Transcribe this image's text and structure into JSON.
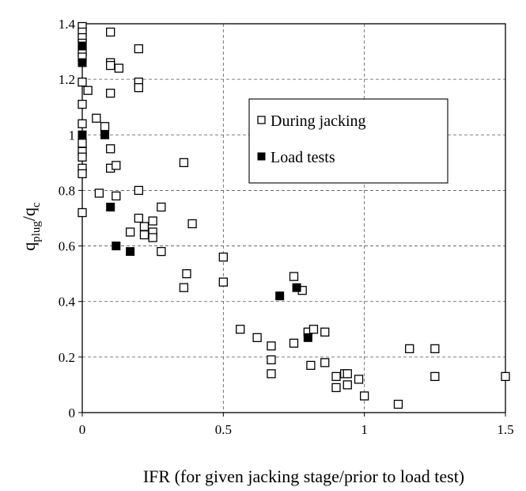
{
  "chart_data": {
    "type": "scatter",
    "xlabel": "IFR (for given jacking stage/prior to load test)",
    "ylabel_main": "q",
    "ylabel_sub1": "plug",
    "ylabel_slash": "/q",
    "ylabel_sub2": "c",
    "xlim": [
      0,
      1.5
    ],
    "ylim": [
      0,
      1.4
    ],
    "x_ticks": [
      "0",
      "0.5",
      "1",
      "1.5"
    ],
    "y_ticks": [
      "0",
      "0.2",
      "0.4",
      "0.6",
      "0.8",
      "1",
      "1.2",
      "1.4"
    ],
    "grid": "dashed",
    "legend_position": "top-right",
    "series": [
      {
        "name": "During jacking",
        "marker": "open-square",
        "points": [
          [
            0,
            1.39
          ],
          [
            0,
            1.37
          ],
          [
            0,
            1.35
          ],
          [
            0,
            1.33
          ],
          [
            0,
            1.3
          ],
          [
            0,
            1.28
          ],
          [
            0,
            1.19
          ],
          [
            0,
            1.11
          ],
          [
            0,
            1.04
          ],
          [
            0,
            0.97
          ],
          [
            0,
            0.94
          ],
          [
            0,
            0.92
          ],
          [
            0,
            0.88
          ],
          [
            0,
            0.86
          ],
          [
            0,
            0.72
          ],
          [
            0.02,
            1.16
          ],
          [
            0.05,
            1.06
          ],
          [
            0.06,
            0.79
          ],
          [
            0.08,
            1.03
          ],
          [
            0.1,
            1.37
          ],
          [
            0.1,
            1.26
          ],
          [
            0.1,
            1.25
          ],
          [
            0.1,
            1.15
          ],
          [
            0.1,
            0.95
          ],
          [
            0.1,
            0.88
          ],
          [
            0.12,
            0.89
          ],
          [
            0.12,
            0.78
          ],
          [
            0.13,
            1.24
          ],
          [
            0.17,
            0.65
          ],
          [
            0.2,
            1.31
          ],
          [
            0.2,
            1.19
          ],
          [
            0.2,
            1.17
          ],
          [
            0.2,
            0.8
          ],
          [
            0.2,
            0.7
          ],
          [
            0.22,
            0.67
          ],
          [
            0.22,
            0.64
          ],
          [
            0.25,
            0.69
          ],
          [
            0.25,
            0.65
          ],
          [
            0.25,
            0.63
          ],
          [
            0.28,
            0.74
          ],
          [
            0.28,
            0.58
          ],
          [
            0.36,
            0.9
          ],
          [
            0.36,
            0.45
          ],
          [
            0.37,
            0.5
          ],
          [
            0.39,
            0.68
          ],
          [
            0.5,
            0.56
          ],
          [
            0.5,
            0.47
          ],
          [
            0.56,
            0.3
          ],
          [
            0.62,
            0.27
          ],
          [
            0.67,
            0.24
          ],
          [
            0.67,
            0.19
          ],
          [
            0.67,
            0.14
          ],
          [
            0.75,
            0.49
          ],
          [
            0.75,
            0.25
          ],
          [
            0.78,
            0.44
          ],
          [
            0.8,
            0.29
          ],
          [
            0.81,
            0.17
          ],
          [
            0.82,
            0.3
          ],
          [
            0.86,
            0.29
          ],
          [
            0.86,
            0.18
          ],
          [
            0.9,
            0.13
          ],
          [
            0.9,
            0.09
          ],
          [
            0.93,
            0.14
          ],
          [
            0.94,
            0.14
          ],
          [
            0.94,
            0.1
          ],
          [
            0.98,
            0.12
          ],
          [
            1.0,
            0.06
          ],
          [
            1.12,
            0.03
          ],
          [
            1.16,
            0.23
          ],
          [
            1.25,
            0.23
          ],
          [
            1.25,
            0.13
          ],
          [
            1.5,
            0.13
          ]
        ]
      },
      {
        "name": "Load tests",
        "marker": "filled-square",
        "points": [
          [
            0,
            1.32
          ],
          [
            0,
            1.26
          ],
          [
            0,
            1.0
          ],
          [
            0.08,
            1.0
          ],
          [
            0.1,
            0.74
          ],
          [
            0.12,
            0.6
          ],
          [
            0.17,
            0.58
          ],
          [
            0.7,
            0.42
          ],
          [
            0.76,
            0.45
          ],
          [
            0.8,
            0.27
          ]
        ]
      }
    ]
  }
}
